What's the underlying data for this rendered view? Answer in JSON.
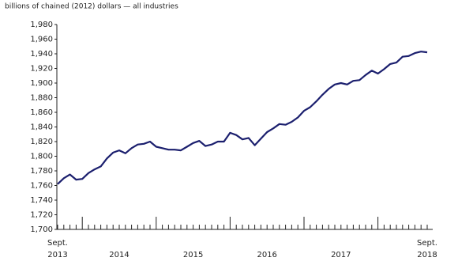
{
  "chart_data": {
    "type": "line",
    "subtitle": "billions of chained (2012) dollars — all industries",
    "categories": [
      "Sept.",
      null,
      null,
      null,
      null,
      null,
      null,
      null,
      null,
      null,
      null,
      null,
      null,
      null,
      null,
      null,
      null,
      null,
      null,
      null,
      null,
      null,
      null,
      null,
      null,
      null,
      null,
      null,
      null,
      null,
      null,
      null,
      null,
      null,
      null,
      null,
      null,
      null,
      null,
      null,
      null,
      null,
      null,
      null,
      null,
      null,
      null,
      null,
      null,
      null,
      null,
      null,
      null,
      null,
      null,
      null,
      null,
      null,
      null,
      null,
      "Sept."
    ],
    "years": [
      "2013",
      "2014",
      "2015",
      "2016",
      "2017",
      "2018"
    ],
    "values": [
      1762,
      1770,
      1775,
      1768,
      1769,
      1777,
      1782,
      1786,
      1797,
      1805,
      1808,
      1804,
      1811,
      1816,
      1817,
      1820,
      1813,
      1811,
      1809,
      1809,
      1808,
      1813,
      1818,
      1821,
      1814,
      1816,
      1820,
      1820,
      1832,
      1829,
      1823,
      1825,
      1815,
      1824,
      1833,
      1838,
      1844,
      1843,
      1847,
      1853,
      1862,
      1867,
      1875,
      1884,
      1892,
      1898,
      1900,
      1898,
      1903,
      1904,
      1911,
      1917,
      1913,
      1919,
      1926,
      1928,
      1936,
      1937,
      1941,
      1943,
      1942
    ],
    "color": "#1b1f6e",
    "ylim": [
      1700,
      1980
    ],
    "yticks": [
      {
        "value": 1700,
        "label": "1,700"
      },
      {
        "value": 1720,
        "label": "1,720"
      },
      {
        "value": 1740,
        "label": "1,740"
      },
      {
        "value": 1760,
        "label": "1,760"
      },
      {
        "value": 1780,
        "label": "1,780"
      },
      {
        "value": 1800,
        "label": "1,800"
      },
      {
        "value": 1820,
        "label": "1,820"
      },
      {
        "value": 1840,
        "label": "1,840"
      },
      {
        "value": 1860,
        "label": "1,860"
      },
      {
        "value": 1880,
        "label": "1,880"
      },
      {
        "value": 1900,
        "label": "1,900"
      },
      {
        "value": 1920,
        "label": "1,920"
      },
      {
        "value": 1940,
        "label": "1,940"
      },
      {
        "value": 1960,
        "label": "1,960"
      },
      {
        "value": 1980,
        "label": "1,980"
      }
    ],
    "grid": false
  }
}
